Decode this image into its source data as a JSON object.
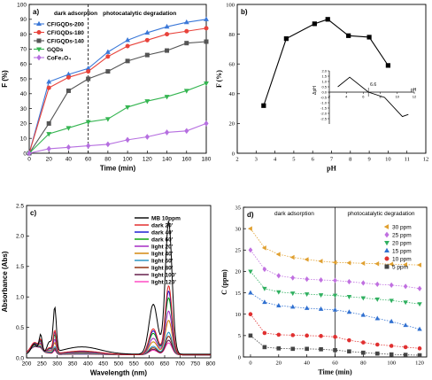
{
  "chart_data": [
    {
      "panel_label": "a)",
      "type": "line",
      "xlabel": "Time (min)",
      "ylabel": "F (%)",
      "xlim": [
        0,
        180
      ],
      "ylim": [
        0,
        100
      ],
      "xticks": [
        0,
        20,
        40,
        60,
        80,
        100,
        120,
        140,
        160,
        180
      ],
      "yticks": [
        0,
        10,
        20,
        30,
        40,
        50,
        60,
        70,
        80,
        90,
        100
      ],
      "divider_x": 60,
      "regions": [
        "dark adsorption",
        "photocatalytic degradation"
      ],
      "legend_position": "top-left",
      "x": [
        0,
        20,
        40,
        60,
        80,
        100,
        120,
        140,
        160,
        180
      ],
      "series": [
        {
          "name": "CF/GQDs-200",
          "color": "#3b78d8",
          "marker": "triangle",
          "values": [
            0,
            48,
            53,
            57,
            68,
            76,
            81,
            85,
            88,
            90
          ]
        },
        {
          "name": "CF/GQDs-180",
          "color": "#e8433b",
          "marker": "circle",
          "values": [
            0,
            44,
            51,
            55,
            65,
            72,
            76,
            80,
            82,
            84
          ]
        },
        {
          "name": "CF/GQDs-140",
          "color": "#555555",
          "marker": "square",
          "values": [
            0,
            20,
            42,
            50,
            55,
            62,
            66,
            69,
            74,
            75
          ]
        },
        {
          "name": "GQDs",
          "color": "#35b551",
          "marker": "triangle-down",
          "values": [
            0,
            13,
            17,
            21,
            23,
            31,
            35,
            38,
            42,
            47
          ]
        },
        {
          "name": "CoFe₂O₄",
          "color": "#b66fe0",
          "marker": "diamond",
          "values": [
            0,
            3,
            4,
            5,
            6,
            9,
            11,
            14,
            15,
            20
          ]
        }
      ]
    },
    {
      "panel_label": "b)",
      "type": "line",
      "xlabel": "pH",
      "ylabel": "F (%)",
      "xlim": [
        2,
        12
      ],
      "ylim": [
        0,
        100
      ],
      "xticks": [
        2,
        3,
        4,
        5,
        6,
        7,
        8,
        9,
        10,
        11,
        12
      ],
      "yticks": [
        0,
        20,
        40,
        60,
        80,
        100
      ],
      "x": [
        3.4,
        4.6,
        6.1,
        6.8,
        7.9,
        9.0,
        10.0
      ],
      "series": [
        {
          "color": "#000000",
          "marker": "square",
          "values": [
            32,
            77,
            87,
            90,
            79,
            78,
            59
          ]
        }
      ],
      "inset": {
        "type": "line",
        "xlabel": "pH",
        "ylabel": "ΔpH",
        "xlim": [
          2,
          12
        ],
        "ylim": [
          -3.0,
          2.0
        ],
        "xticks": [
          2,
          4,
          6,
          8,
          10,
          12
        ],
        "yticks": [
          2.0,
          1.5,
          1.0,
          0.5,
          0.0,
          -0.5,
          -1.0,
          -1.5,
          -2.0,
          -2.5
        ],
        "annotation": "6.6",
        "annotation_x": 6.6,
        "x": [
          3,
          4.4,
          6.6,
          8.5,
          10.6,
          11.3
        ],
        "values": [
          0.5,
          1.4,
          0.0,
          -0.5,
          -2.3,
          -2.1
        ]
      }
    },
    {
      "panel_label": "c)",
      "type": "line",
      "xlabel": "Wavelength (nm)",
      "ylabel": "Absorbance (Abs)",
      "xlim": [
        200,
        800
      ],
      "ylim": [
        0,
        2.5
      ],
      "xticks": [
        200,
        250,
        300,
        350,
        400,
        450,
        500,
        550,
        600,
        650,
        700,
        750,
        800
      ],
      "yticks": [
        0.0,
        0.5,
        1.0,
        1.5,
        2.0,
        2.5
      ],
      "legend_position": "top-right",
      "series": [
        {
          "name": "MB 10ppm",
          "color": "#000000",
          "scale": 1.0
        },
        {
          "name": "dark 20'",
          "color": "#e02020",
          "scale": 0.52
        },
        {
          "name": "dark 40'",
          "color": "#1010d0",
          "scale": 0.48
        },
        {
          "name": "dark 60'",
          "color": "#00a000",
          "scale": 0.43
        },
        {
          "name": "light 20'",
          "color": "#a020c0",
          "scale": 0.33
        },
        {
          "name": "light 40'",
          "color": "#d08000",
          "scale": 0.26
        },
        {
          "name": "light 60'",
          "color": "#2090c0",
          "scale": 0.17
        },
        {
          "name": "light 80'",
          "color": "#8b2500",
          "scale": 0.14
        },
        {
          "name": "light 100'",
          "color": "#5a1040",
          "scale": 0.11
        },
        {
          "name": "light 120'",
          "color": "#ff40c0",
          "scale": 0.09
        }
      ]
    },
    {
      "panel_label": "d)",
      "type": "line",
      "xlabel": "Time (min)",
      "ylabel": "C (ppm)",
      "xlim": [
        -5,
        125
      ],
      "ylim": [
        0,
        35
      ],
      "xticks": [
        0,
        20,
        40,
        60,
        80,
        100,
        120
      ],
      "yticks": [
        0,
        5,
        10,
        15,
        20,
        25,
        30,
        35
      ],
      "divider_x": 60,
      "regions": [
        "dark adsorption",
        "photocatalytic degradation"
      ],
      "legend_position": "top-right",
      "x": [
        0,
        10,
        20,
        30,
        40,
        50,
        60,
        70,
        80,
        90,
        100,
        110,
        120
      ],
      "series": [
        {
          "name": "30 ppm",
          "color": "#e0a030",
          "marker": "triangle-left",
          "values": [
            30,
            25.5,
            24.0,
            23.3,
            22.8,
            22.4,
            22.1,
            22.0,
            21.9,
            21.8,
            21.7,
            21.6,
            21.5
          ]
        },
        {
          "name": "25 ppm",
          "color": "#c070e0",
          "marker": "diamond",
          "values": [
            25,
            20.5,
            19.0,
            18.5,
            18.2,
            18.0,
            17.9,
            17.6,
            17.3,
            17.0,
            16.8,
            16.5,
            16.0
          ]
        },
        {
          "name": "20 ppm",
          "color": "#30b060",
          "marker": "triangle-down",
          "values": [
            20,
            16.0,
            15.2,
            14.9,
            14.7,
            14.5,
            14.4,
            14.1,
            13.8,
            13.5,
            13.2,
            12.8,
            12.4
          ]
        },
        {
          "name": "15 ppm",
          "color": "#3070d0",
          "marker": "triangle",
          "values": [
            15,
            12.8,
            12.0,
            11.7,
            11.4,
            11.2,
            11.0,
            10.5,
            9.8,
            9.0,
            8.3,
            7.4,
            6.5
          ]
        },
        {
          "name": "10 ppm",
          "color": "#e03030",
          "marker": "circle",
          "values": [
            10,
            5.6,
            5.2,
            5.1,
            5.0,
            4.9,
            4.7,
            3.9,
            3.4,
            2.9,
            2.6,
            2.3,
            2.0
          ]
        },
        {
          "name": "5 ppm",
          "color": "#444444",
          "marker": "square",
          "values": [
            5,
            2.3,
            2.0,
            1.9,
            1.9,
            1.8,
            1.6,
            1.3,
            1.0,
            0.8,
            0.6,
            0.5,
            0.4
          ]
        }
      ]
    }
  ]
}
